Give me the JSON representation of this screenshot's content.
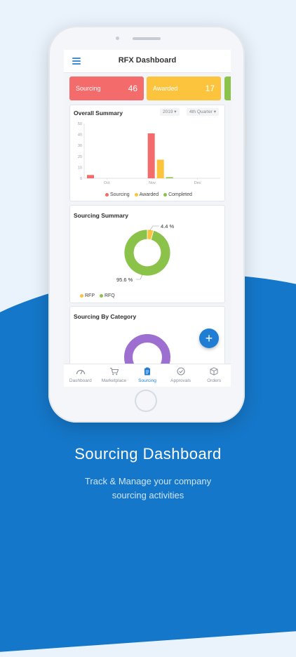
{
  "app": {
    "title": "RFX Dashboard"
  },
  "stats": [
    {
      "label": "Sourcing",
      "count": "46",
      "color": "#f36b6b"
    },
    {
      "label": "Awarded",
      "count": "17",
      "color": "#fcc43c"
    },
    {
      "label": "",
      "count": "",
      "color": "#8bc34a"
    }
  ],
  "overall_summary": {
    "title": "Overall Summary",
    "year": "2019",
    "quarter": "4th Quarter",
    "chart_data": {
      "type": "bar",
      "categories": [
        "Oct",
        "Nov",
        "Dec"
      ],
      "series": [
        {
          "name": "Sourcing",
          "color": "#f36b6b",
          "values": [
            3,
            41,
            0
          ]
        },
        {
          "name": "Awarded",
          "color": "#fcc43c",
          "values": [
            0,
            17,
            0
          ]
        },
        {
          "name": "Completed",
          "color": "#8bc34a",
          "values": [
            0,
            1,
            0
          ]
        }
      ],
      "yticks": [
        "0",
        "10",
        "20",
        "30",
        "40",
        "50"
      ],
      "ylim": [
        0,
        50
      ]
    }
  },
  "sourcing_summary": {
    "title": "Sourcing Summary",
    "chart_data": {
      "type": "pie",
      "labels": [
        "RFP",
        "RFQ"
      ],
      "values": [
        4.4,
        95.6
      ],
      "data_labels": [
        "4.4 %",
        "95.6 %"
      ],
      "colors": [
        "#fcc43c",
        "#8bc34a"
      ]
    },
    "legend": [
      {
        "name": "RFP",
        "color": "#fcc43c"
      },
      {
        "name": "RFQ",
        "color": "#8bc34a"
      }
    ]
  },
  "sourcing_by_category": {
    "title": "Sourcing By Category",
    "color": "#9c6fd0"
  },
  "fab": {
    "icon": "plus-icon",
    "glyph": "+"
  },
  "tabs": [
    {
      "label": "Dashboard",
      "icon": "gauge-icon",
      "active": false
    },
    {
      "label": "Marketplace",
      "icon": "cart-icon",
      "active": false
    },
    {
      "label": "Sourcing",
      "icon": "clipboard-icon",
      "active": true
    },
    {
      "label": "Approvals",
      "icon": "check-circle-icon",
      "active": false
    },
    {
      "label": "Orders",
      "icon": "box-icon",
      "active": false
    }
  ],
  "promo": {
    "title": "Sourcing Dashboard",
    "subtitle_line1": "Track & Manage your company",
    "subtitle_line2": "sourcing activities"
  },
  "colors": {
    "accent": "#1f7dd3",
    "background_blue": "#1577c9"
  }
}
